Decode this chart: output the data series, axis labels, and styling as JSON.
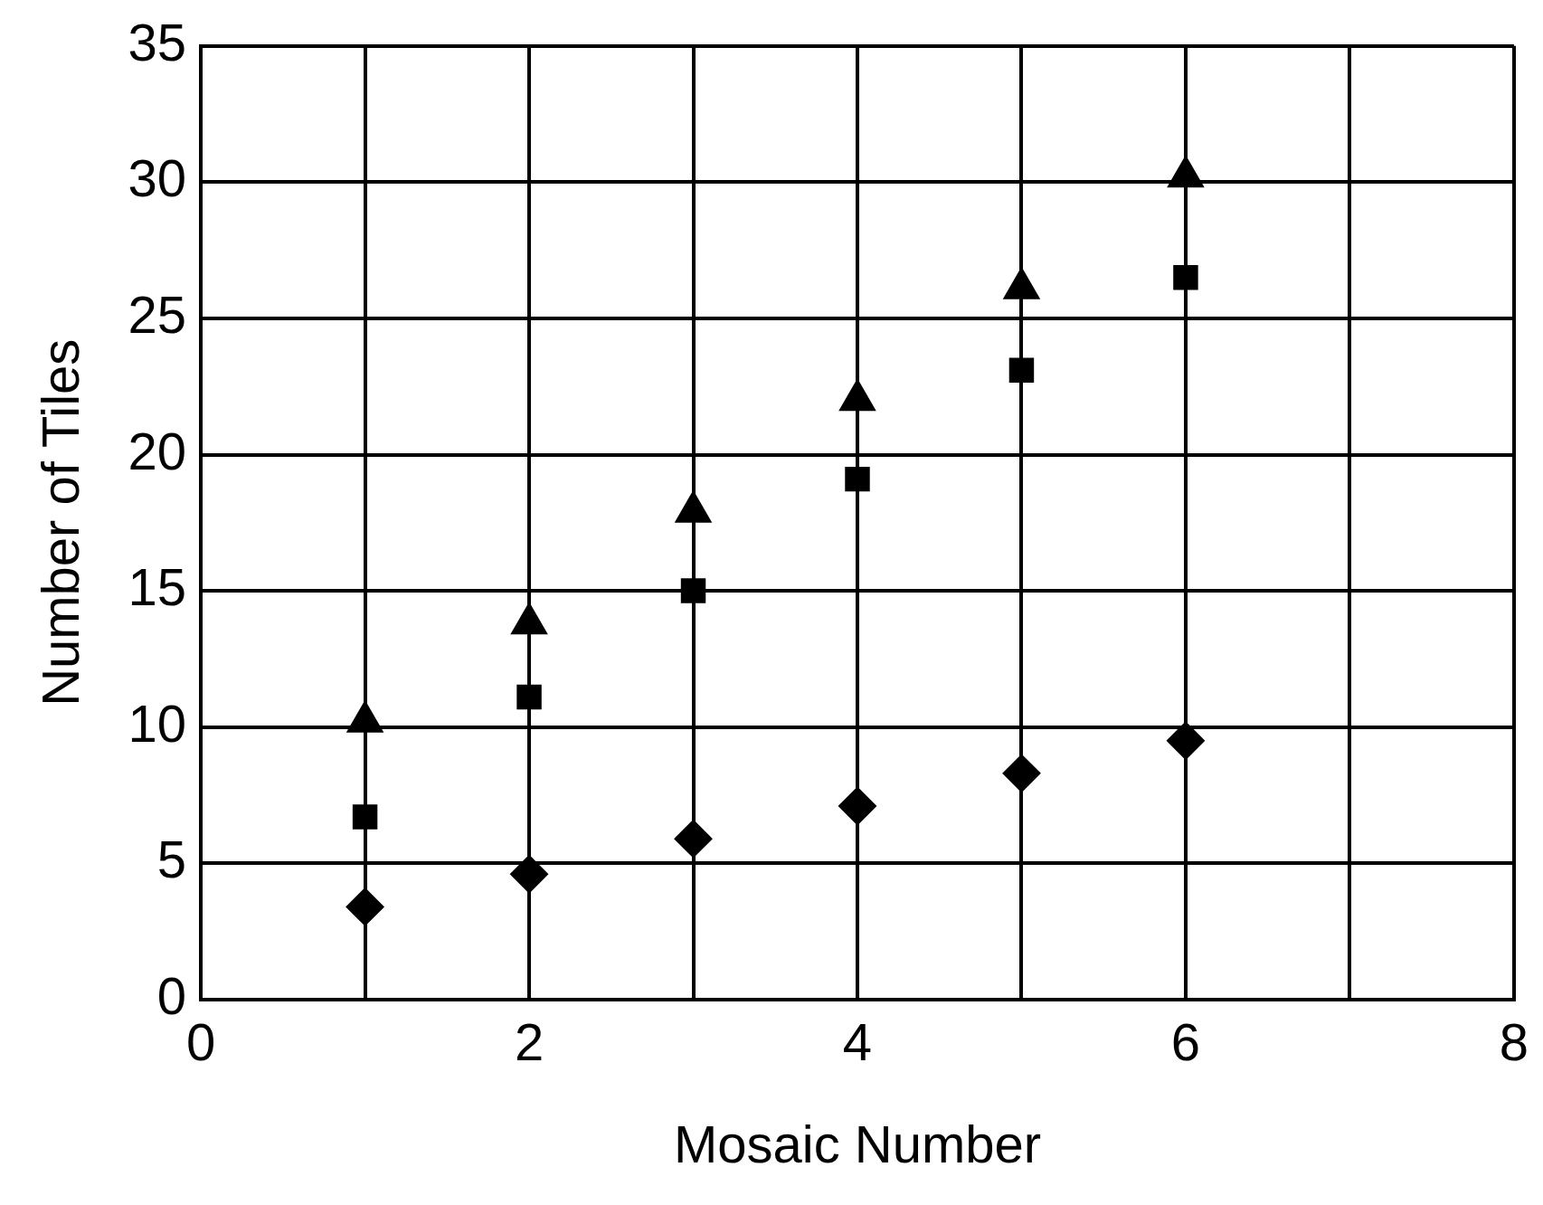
{
  "chart_data": {
    "type": "scatter",
    "xlabel": "Mosaic Number",
    "ylabel": "Number of Tiles",
    "xlim": [
      0,
      8
    ],
    "xticks": [
      0,
      {
        "value": 1,
        "label": null
      },
      2,
      {
        "value": 3,
        "label": null
      },
      4,
      {
        "value": 5,
        "label": null
      },
      6,
      {
        "value": 7,
        "label": null
      },
      8
    ],
    "ylim": [
      0,
      35
    ],
    "yticks": [
      0,
      5,
      10,
      15,
      20,
      25,
      30,
      35
    ],
    "grid": true,
    "legend": false,
    "series": [
      {
        "color": "#000000",
        "marker": "triangle",
        "x": [
          1,
          2,
          3,
          4,
          5,
          6
        ],
        "values": [
          10.2,
          13.8,
          17.9,
          22,
          26.1,
          30.2
        ]
      },
      {
        "color": "#000000",
        "marker": "square",
        "x": [
          1,
          2,
          3,
          4,
          5,
          6
        ],
        "values": [
          6.7,
          11.1,
          15,
          19.1,
          23.1,
          26.5
        ]
      },
      {
        "color": "#000000",
        "marker": "diamond",
        "x": [
          1,
          2,
          3,
          4,
          5,
          6
        ],
        "values": [
          3.4,
          4.6,
          5.9,
          7.1,
          8.3,
          9.5
        ]
      }
    ]
  }
}
